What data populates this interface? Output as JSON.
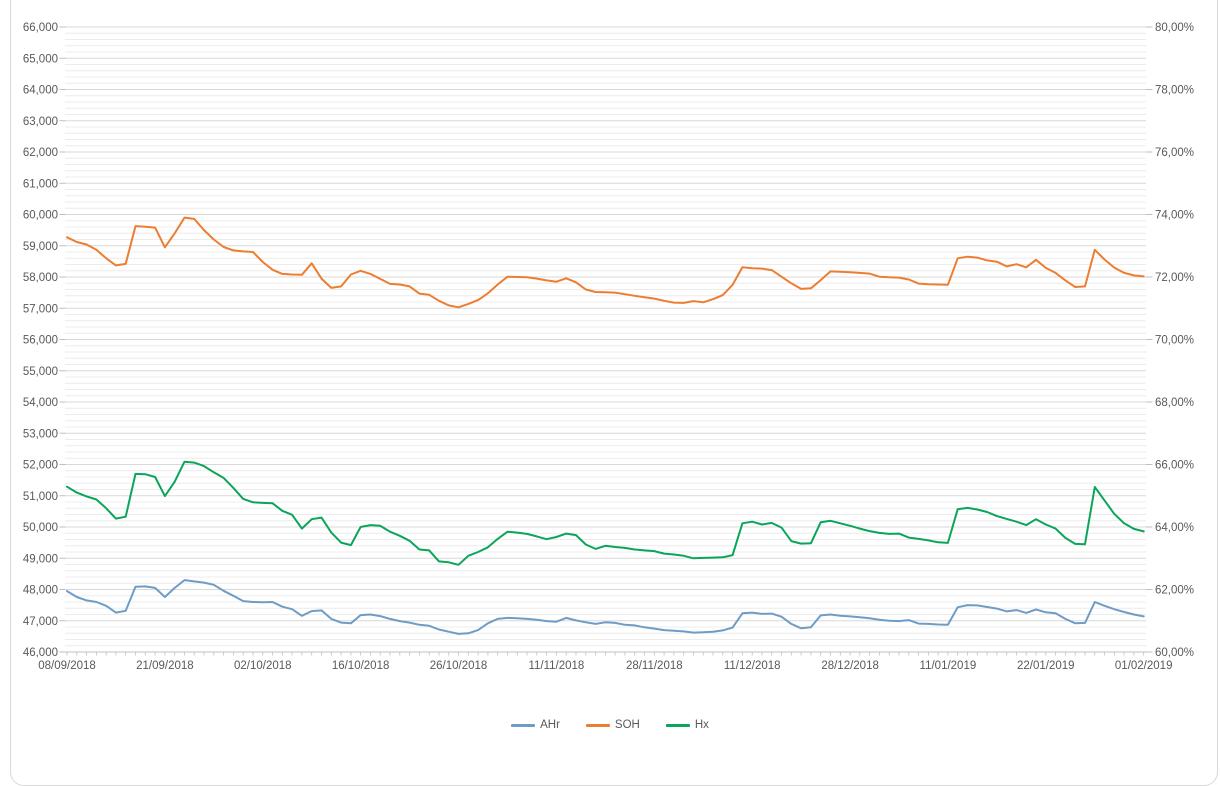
{
  "chart_data": {
    "type": "line",
    "title": "",
    "n_points": 111,
    "x_label_every": 10,
    "x_labels": [
      "08/09/2018",
      "21/09/2018",
      "02/10/2018",
      "16/10/2018",
      "26/10/2018",
      "11/11/2018",
      "28/11/2018",
      "11/12/2018",
      "28/12/2018",
      "11/01/2019",
      "22/01/2019",
      "01/02/2019"
    ],
    "left_axis": {
      "min": 46000,
      "max": 66000,
      "major_step": 1000,
      "minor_step": 200,
      "tick_labels": [
        "66,000",
        "65,000",
        "64,000",
        "63,000",
        "62,000",
        "61,000",
        "60,000",
        "59,000",
        "58,000",
        "57,000",
        "56,000",
        "55,000",
        "54,000",
        "53,000",
        "52,000",
        "51,000",
        "50,000",
        "49,000",
        "48,000",
        "47,000",
        "46,000"
      ]
    },
    "right_axis": {
      "min": 60,
      "max": 80,
      "step": 2,
      "tick_labels": [
        "80,00%",
        "78,00%",
        "76,00%",
        "74,00%",
        "72,00%",
        "70,00%",
        "68,00%",
        "66,00%",
        "64,00%",
        "62,00%",
        "60,00%"
      ]
    },
    "grid": {
      "horizontal_major": true,
      "horizontal_minor": true,
      "vertical": false
    },
    "legend_position": "bottom",
    "colors": {
      "axis_line": "#bfbfbf",
      "major_grid": "#d8d8d8",
      "minor_grid": "#ececec",
      "label_text": "#595959"
    },
    "series": [
      {
        "name": "AHr",
        "color": "#6f9cc6",
        "axis": "left",
        "values": [
          47950,
          47760,
          47650,
          47600,
          47480,
          47260,
          47320,
          48090,
          48100,
          48050,
          47760,
          48050,
          48300,
          48260,
          48220,
          48150,
          47960,
          47800,
          47630,
          47600,
          47590,
          47600,
          47450,
          47370,
          47160,
          47310,
          47330,
          47060,
          46940,
          46920,
          47180,
          47200,
          47150,
          47060,
          46990,
          46940,
          46870,
          46840,
          46720,
          46650,
          46580,
          46600,
          46700,
          46920,
          47060,
          47090,
          47080,
          47060,
          47030,
          46990,
          46970,
          47090,
          47010,
          46950,
          46900,
          46950,
          46930,
          46870,
          46850,
          46790,
          46750,
          46700,
          46680,
          46660,
          46620,
          46630,
          46650,
          46690,
          46780,
          47240,
          47260,
          47220,
          47230,
          47130,
          46900,
          46760,
          46790,
          47170,
          47200,
          47160,
          47140,
          47110,
          47080,
          47030,
          47000,
          46990,
          47020,
          46910,
          46900,
          46880,
          46870,
          47430,
          47500,
          47490,
          47440,
          47390,
          47300,
          47340,
          47250,
          47360,
          47270,
          47240,
          47060,
          46920,
          46930,
          47600,
          47480,
          47370,
          47280,
          47200,
          47140
        ]
      },
      {
        "name": "SOH",
        "color": "#ed7d31",
        "axis": "right",
        "values": [
          59270,
          59120,
          59040,
          58870,
          58600,
          58370,
          58420,
          59630,
          59610,
          59580,
          58950,
          59400,
          59900,
          59860,
          59500,
          59200,
          58960,
          58850,
          58820,
          58800,
          58480,
          58230,
          58100,
          58080,
          58070,
          58440,
          57950,
          57650,
          57700,
          58080,
          58200,
          58100,
          57940,
          57780,
          57760,
          57700,
          57470,
          57430,
          57240,
          57090,
          57030,
          57140,
          57260,
          57480,
          57760,
          58010,
          58000,
          57990,
          57950,
          57890,
          57850,
          57960,
          57830,
          57600,
          57520,
          57510,
          57500,
          57450,
          57400,
          57350,
          57310,
          57240,
          57180,
          57170,
          57230,
          57190,
          57290,
          57420,
          57750,
          58310,
          58280,
          58270,
          58220,
          58010,
          57800,
          57620,
          57640,
          57900,
          58180,
          58170,
          58150,
          58130,
          58110,
          58010,
          57990,
          57980,
          57920,
          57790,
          57770,
          57760,
          57750,
          58600,
          58650,
          58620,
          58530,
          58490,
          58340,
          58410,
          58310,
          58550,
          58290,
          58130,
          57890,
          57680,
          57700,
          58870,
          58560,
          58300,
          58130,
          58050,
          58020
        ]
      },
      {
        "name": "Hx",
        "color": "#0ba55a",
        "axis": "right",
        "values": [
          51290,
          51100,
          50980,
          50880,
          50600,
          50270,
          50330,
          51700,
          51690,
          51600,
          50990,
          51450,
          52090,
          52060,
          51950,
          51750,
          51570,
          51250,
          50900,
          50790,
          50770,
          50760,
          50520,
          50390,
          49950,
          50250,
          50300,
          49820,
          49500,
          49420,
          50000,
          50060,
          50040,
          49850,
          49720,
          49560,
          49280,
          49250,
          48900,
          48870,
          48790,
          49080,
          49200,
          49350,
          49620,
          49850,
          49820,
          49780,
          49700,
          49610,
          49680,
          49790,
          49740,
          49440,
          49300,
          49400,
          49360,
          49330,
          49280,
          49250,
          49230,
          49150,
          49120,
          49080,
          49000,
          49010,
          49020,
          49030,
          49100,
          50120,
          50170,
          50080,
          50130,
          49980,
          49550,
          49470,
          49480,
          50150,
          50200,
          50120,
          50040,
          49950,
          49870,
          49810,
          49780,
          49790,
          49660,
          49620,
          49570,
          49510,
          49490,
          50570,
          50610,
          50560,
          50480,
          50350,
          50260,
          50170,
          50060,
          50250,
          50080,
          49950,
          49650,
          49460,
          49450,
          51280,
          50850,
          50420,
          50120,
          49940,
          49860
        ]
      }
    ],
    "note": "Right axis maps 60,00%-80,00% onto left 46,000-66,000 (2,00% per 2,000)."
  }
}
